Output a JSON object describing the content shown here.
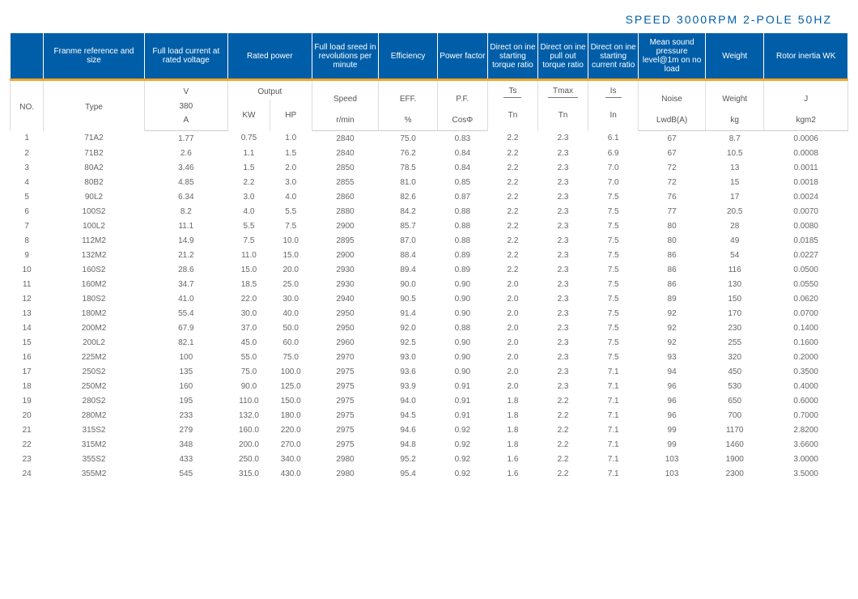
{
  "title": "SPEED 3000RPM 2-POLE 50HZ",
  "header1": {
    "blank": "",
    "frame": "Franme reference and size",
    "current": "Full load current at rated voltage",
    "power": "Rated power",
    "speed": "Full load sreed in revolutions per minute",
    "eff": "Efficiency",
    "pf": "Power factor",
    "ts": "Direct on ine starting torque ratio",
    "tmax": "Direct on ine pull out torque ratio",
    "is": "Direct on ine starting current ratio",
    "noise": "Mean sound pressure level@1m on no load",
    "weight": "Weight",
    "inertia": "Rotor inertia WK"
  },
  "header2": {
    "no": "NO.",
    "type": "Type",
    "v": "V",
    "v380": "380",
    "a": "A",
    "output": "Output",
    "kw": "KW",
    "hp": "HP",
    "speed": "Speed",
    "rmin": "r/min",
    "eff": "EFF.",
    "pct": "%",
    "pf": "P.F.",
    "cos": "CosΦ",
    "ts": "Ts",
    "tn": "Tn",
    "tmax": "Tmax",
    "is": "Is",
    "in": "In",
    "noise": "Noise",
    "lwdb": "LwdB(A)",
    "weight": "Weight",
    "kg": "kg",
    "j": "J",
    "kgm2": "kgm2"
  },
  "rows": [
    [
      "1",
      "71A2",
      "1.77",
      "0.75",
      "1.0",
      "2840",
      "75.0",
      "0.83",
      "2.2",
      "2.3",
      "6.1",
      "67",
      "8.7",
      "0.0006"
    ],
    [
      "2",
      "71B2",
      "2.6",
      "1.1",
      "1.5",
      "2840",
      "76.2",
      "0.84",
      "2.2",
      "2.3",
      "6.9",
      "67",
      "10.5",
      "0.0008"
    ],
    [
      "3",
      "80A2",
      "3.46",
      "1.5",
      "2.0",
      "2850",
      "78.5",
      "0.84",
      "2.2",
      "2.3",
      "7.0",
      "72",
      "13",
      "0.0011"
    ],
    [
      "4",
      "80B2",
      "4.85",
      "2.2",
      "3.0",
      "2855",
      "81.0",
      "0.85",
      "2.2",
      "2.3",
      "7.0",
      "72",
      "15",
      "0.0018"
    ],
    [
      "5",
      "90L2",
      "6.34",
      "3.0",
      "4.0",
      "2860",
      "82.6",
      "0.87",
      "2.2",
      "2.3",
      "7.5",
      "76",
      "17",
      "0.0024"
    ],
    [
      "6",
      "100S2",
      "8.2",
      "4.0",
      "5.5",
      "2880",
      "84.2",
      "0.88",
      "2.2",
      "2.3",
      "7.5",
      "77",
      "20.5",
      "0.0070"
    ],
    [
      "7",
      "100L2",
      "11.1",
      "5.5",
      "7.5",
      "2900",
      "85.7",
      "0.88",
      "2.2",
      "2.3",
      "7.5",
      "80",
      "28",
      "0.0080"
    ],
    [
      "8",
      "112M2",
      "14.9",
      "7.5",
      "10.0",
      "2895",
      "87.0",
      "0.88",
      "2.2",
      "2.3",
      "7.5",
      "80",
      "49",
      "0.0185"
    ],
    [
      "9",
      "132M2",
      "21.2",
      "11.0",
      "15.0",
      "2900",
      "88.4",
      "0.89",
      "2.2",
      "2.3",
      "7.5",
      "86",
      "54",
      "0.0227"
    ],
    [
      "10",
      "160S2",
      "28.6",
      "15.0",
      "20.0",
      "2930",
      "89.4",
      "0.89",
      "2.2",
      "2.3",
      "7.5",
      "86",
      "116",
      "0.0500"
    ],
    [
      "11",
      "160M2",
      "34.7",
      "18.5",
      "25.0",
      "2930",
      "90.0",
      "0.90",
      "2.0",
      "2.3",
      "7.5",
      "86",
      "130",
      "0.0550"
    ],
    [
      "12",
      "180S2",
      "41.0",
      "22.0",
      "30.0",
      "2940",
      "90.5",
      "0.90",
      "2.0",
      "2.3",
      "7.5",
      "89",
      "150",
      "0.0620"
    ],
    [
      "13",
      "180M2",
      "55.4",
      "30.0",
      "40.0",
      "2950",
      "91.4",
      "0.90",
      "2.0",
      "2.3",
      "7.5",
      "92",
      "170",
      "0.0700"
    ],
    [
      "14",
      "200M2",
      "67.9",
      "37.0",
      "50.0",
      "2950",
      "92.0",
      "0.88",
      "2.0",
      "2.3",
      "7.5",
      "92",
      "230",
      "0.1400"
    ],
    [
      "15",
      "200L2",
      "82.1",
      "45.0",
      "60.0",
      "2960",
      "92.5",
      "0.90",
      "2.0",
      "2.3",
      "7.5",
      "92",
      "255",
      "0.1600"
    ],
    [
      "16",
      "225M2",
      "100",
      "55.0",
      "75.0",
      "2970",
      "93.0",
      "0.90",
      "2.0",
      "2.3",
      "7.5",
      "93",
      "320",
      "0.2000"
    ],
    [
      "17",
      "250S2",
      "135",
      "75.0",
      "100.0",
      "2975",
      "93.6",
      "0.90",
      "2.0",
      "2.3",
      "7.1",
      "94",
      "450",
      "0.3500"
    ],
    [
      "18",
      "250M2",
      "160",
      "90.0",
      "125.0",
      "2975",
      "93.9",
      "0.91",
      "2.0",
      "2.3",
      "7.1",
      "96",
      "530",
      "0.4000"
    ],
    [
      "19",
      "280S2",
      "195",
      "110.0",
      "150.0",
      "2975",
      "94.0",
      "0.91",
      "1.8",
      "2.2",
      "7.1",
      "96",
      "650",
      "0.6000"
    ],
    [
      "20",
      "280M2",
      "233",
      "132.0",
      "180.0",
      "2975",
      "94.5",
      "0.91",
      "1.8",
      "2.2",
      "7.1",
      "96",
      "700",
      "0.7000"
    ],
    [
      "21",
      "315S2",
      "279",
      "160.0",
      "220.0",
      "2975",
      "94.6",
      "0.92",
      "1.8",
      "2.2",
      "7.1",
      "99",
      "1170",
      "2.8200"
    ],
    [
      "22",
      "315M2",
      "348",
      "200.0",
      "270.0",
      "2975",
      "94.8",
      "0.92",
      "1.8",
      "2.2",
      "7.1",
      "99",
      "1460",
      "3.6600"
    ],
    [
      "23",
      "355S2",
      "433",
      "250.0",
      "340.0",
      "2980",
      "95.2",
      "0.92",
      "1.6",
      "2.2",
      "7.1",
      "103",
      "1900",
      "3.0000"
    ],
    [
      "24",
      "355M2",
      "545",
      "315.0",
      "430.0",
      "2980",
      "95.4",
      "0.92",
      "1.6",
      "2.2",
      "7.1",
      "103",
      "2300",
      "3.5000"
    ]
  ],
  "col_widths_pct": [
    4,
    12,
    10,
    5,
    5,
    8,
    7,
    6,
    6,
    6,
    6,
    8,
    7,
    10
  ],
  "colors": {
    "header_bg": "#005ea8",
    "header_fg": "#ffffff",
    "accent": "#f5a623",
    "border": "#dddddd",
    "text": "#555555"
  }
}
